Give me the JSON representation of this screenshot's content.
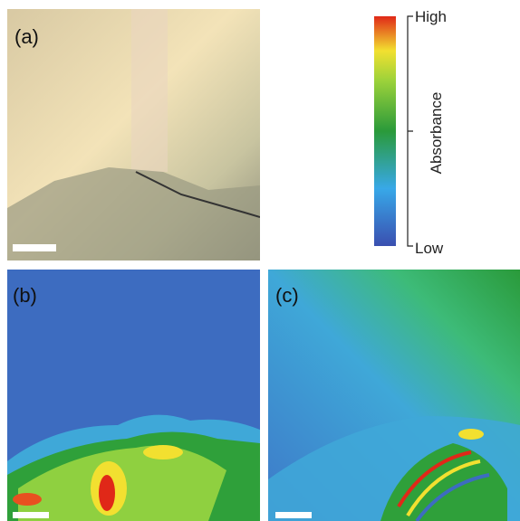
{
  "panels": [
    {
      "label": "(a)"
    },
    {
      "label": "(b)"
    },
    {
      "label": "(c)"
    }
  ],
  "colorbar": {
    "high": "High",
    "low": "Low",
    "title": "Absorbance"
  }
}
